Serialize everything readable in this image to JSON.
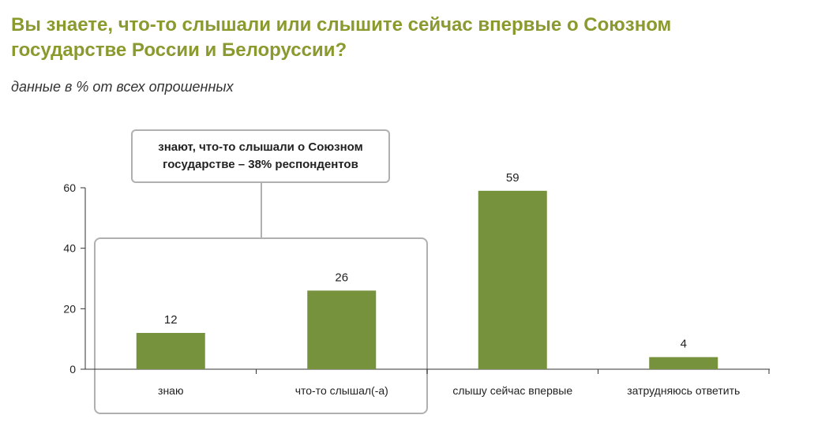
{
  "title": "Вы знаете, что-то слышали или слышите сейчас впервые о Союзном государстве России и Белоруссии?",
  "subtitle": "данные в % от всех опрошенных",
  "callout": "знают, что-то слышали о Союзном государстве – 38% респондентов",
  "colors": {
    "bar": "#76923c",
    "title": "#8a9a2e",
    "frame": "#b0b0b0",
    "axis": "#333333"
  },
  "chart_data": {
    "type": "bar",
    "title": "Вы знаете, что-то слышали или слышите сейчас впервые о Союзном государстве России и Белоруссии?",
    "subtitle": "данные в % от всех опрошенных",
    "categories": [
      "знаю",
      "что-то слышал(-а)",
      "слышу сейчас впервые",
      "затрудняюсь ответить"
    ],
    "values": [
      12,
      26,
      59,
      4
    ],
    "ylim": [
      0,
      60
    ],
    "yticks": [
      0,
      20,
      40,
      60
    ],
    "xlabel": "",
    "ylabel": "",
    "grid": false,
    "legend": "none"
  }
}
